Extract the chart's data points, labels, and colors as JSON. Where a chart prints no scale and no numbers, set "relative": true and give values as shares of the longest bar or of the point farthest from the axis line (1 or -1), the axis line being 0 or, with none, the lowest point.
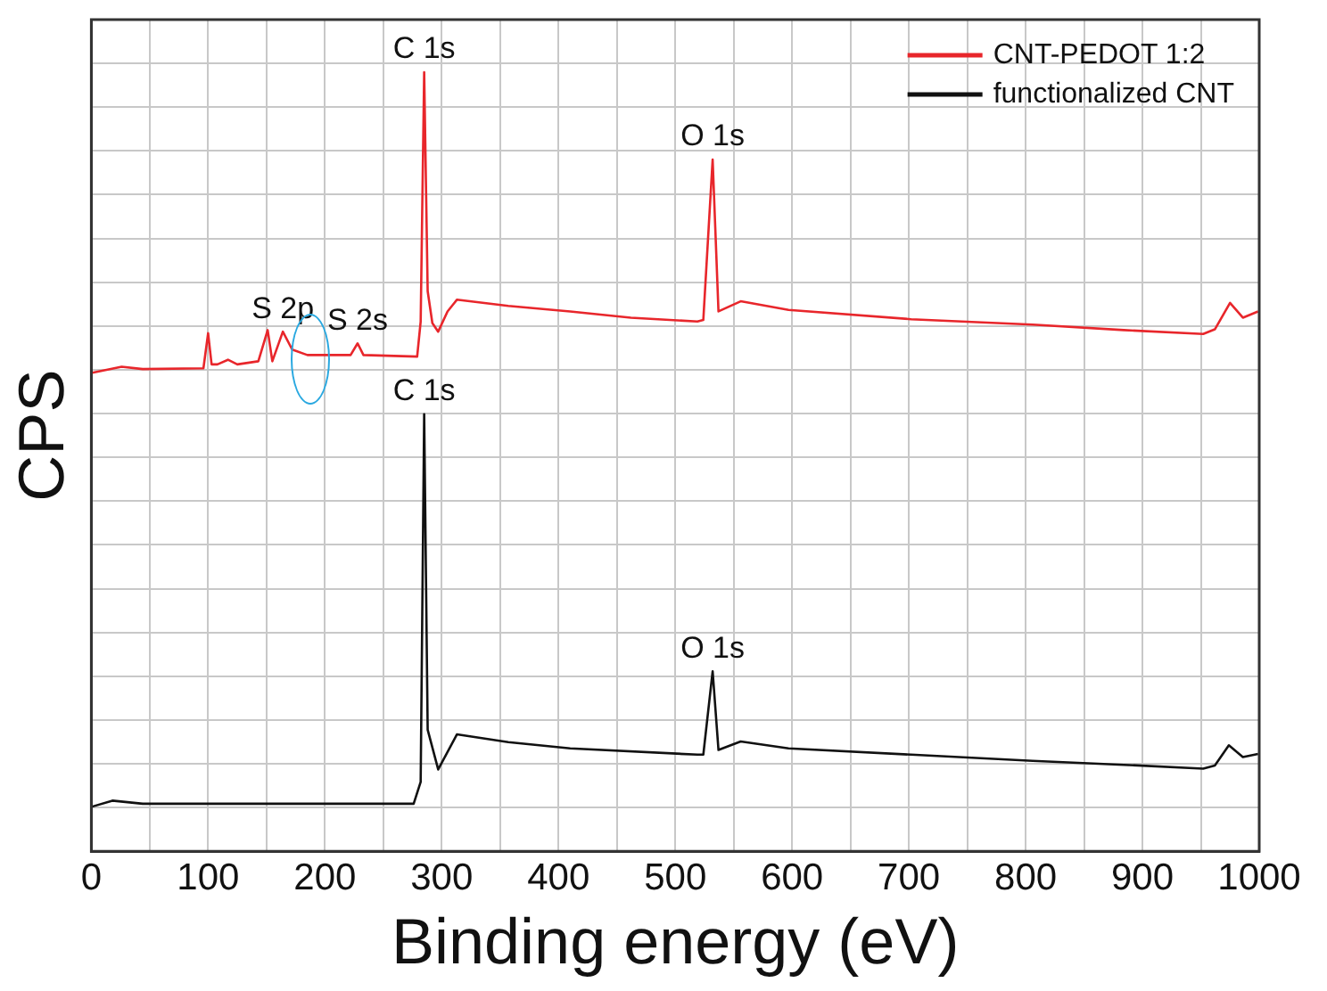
{
  "chart_data": {
    "type": "line",
    "relative": true,
    "xlabel": "Binding energy (eV)",
    "ylabel": "CPS",
    "xlim": [
      0,
      1000
    ],
    "xticks": [
      0,
      {
        "value": 50,
        "label": null
      },
      100,
      {
        "value": 150,
        "label": null
      },
      200,
      {
        "value": 250,
        "label": null
      },
      300,
      {
        "value": 350,
        "label": null
      },
      400,
      {
        "value": 450,
        "label": null
      },
      500,
      {
        "value": 550,
        "label": null
      },
      600,
      {
        "value": 650,
        "label": null
      },
      700,
      {
        "value": 750,
        "label": null
      },
      800,
      {
        "value": 850,
        "label": null
      },
      900,
      {
        "value": 950,
        "label": null
      },
      1000
    ],
    "grid": true,
    "legend": "top right",
    "marker": "none",
    "line_style": "solid",
    "series": [
      {
        "name": "CNT-PEDOT 1:2",
        "color": "#e8262b",
        "x": [
          0,
          26,
          44,
          96,
          100,
          103,
          108,
          117,
          125,
          143,
          151,
          155,
          164,
          172,
          185,
          222,
          228,
          233,
          279,
          282,
          285,
          288,
          292,
          297,
          305,
          313,
          357,
          410,
          462,
          519,
          524,
          532,
          537,
          556,
          597,
          702,
          806,
          884,
          952,
          962,
          975,
          986,
          999
        ],
        "values": [
          0.614,
          0.622,
          0.619,
          0.62,
          0.665,
          0.625,
          0.625,
          0.631,
          0.625,
          0.629,
          0.669,
          0.629,
          0.667,
          0.644,
          0.637,
          0.637,
          0.652,
          0.637,
          0.635,
          0.68,
          1.0,
          0.719,
          0.678,
          0.667,
          0.693,
          0.708,
          0.7,
          0.693,
          0.685,
          0.68,
          0.682,
          0.888,
          0.693,
          0.706,
          0.695,
          0.683,
          0.676,
          0.669,
          0.664,
          0.67,
          0.704,
          0.685,
          0.693
        ]
      },
      {
        "name": "functionalized CNT",
        "color": "#111111",
        "x": [
          0,
          18,
          44,
          276,
          282,
          285,
          288,
          297,
          313,
          357,
          410,
          519,
          524,
          532,
          537,
          556,
          597,
          702,
          806,
          884,
          952,
          962,
          974,
          986,
          999
        ],
        "values": [
          0.057,
          0.065,
          0.061,
          0.061,
          0.089,
          0.561,
          0.156,
          0.105,
          0.15,
          0.14,
          0.132,
          0.124,
          0.124,
          0.231,
          0.13,
          0.141,
          0.132,
          0.124,
          0.116,
          0.111,
          0.106,
          0.11,
          0.136,
          0.121,
          0.125
        ]
      }
    ],
    "annotations": [
      {
        "text": "C 1s",
        "x": 285,
        "y": 1.0
      },
      {
        "text": "O 1s",
        "x": 532,
        "y": 0.888
      },
      {
        "text": "S 2p",
        "x": 164,
        "y": 0.667
      },
      {
        "text": "S 2s",
        "x": 228,
        "y": 0.652
      },
      {
        "text": "C 1s",
        "x": 285,
        "y": 0.561
      },
      {
        "text": "O 1s",
        "x": 532,
        "y": 0.231
      }
    ]
  }
}
